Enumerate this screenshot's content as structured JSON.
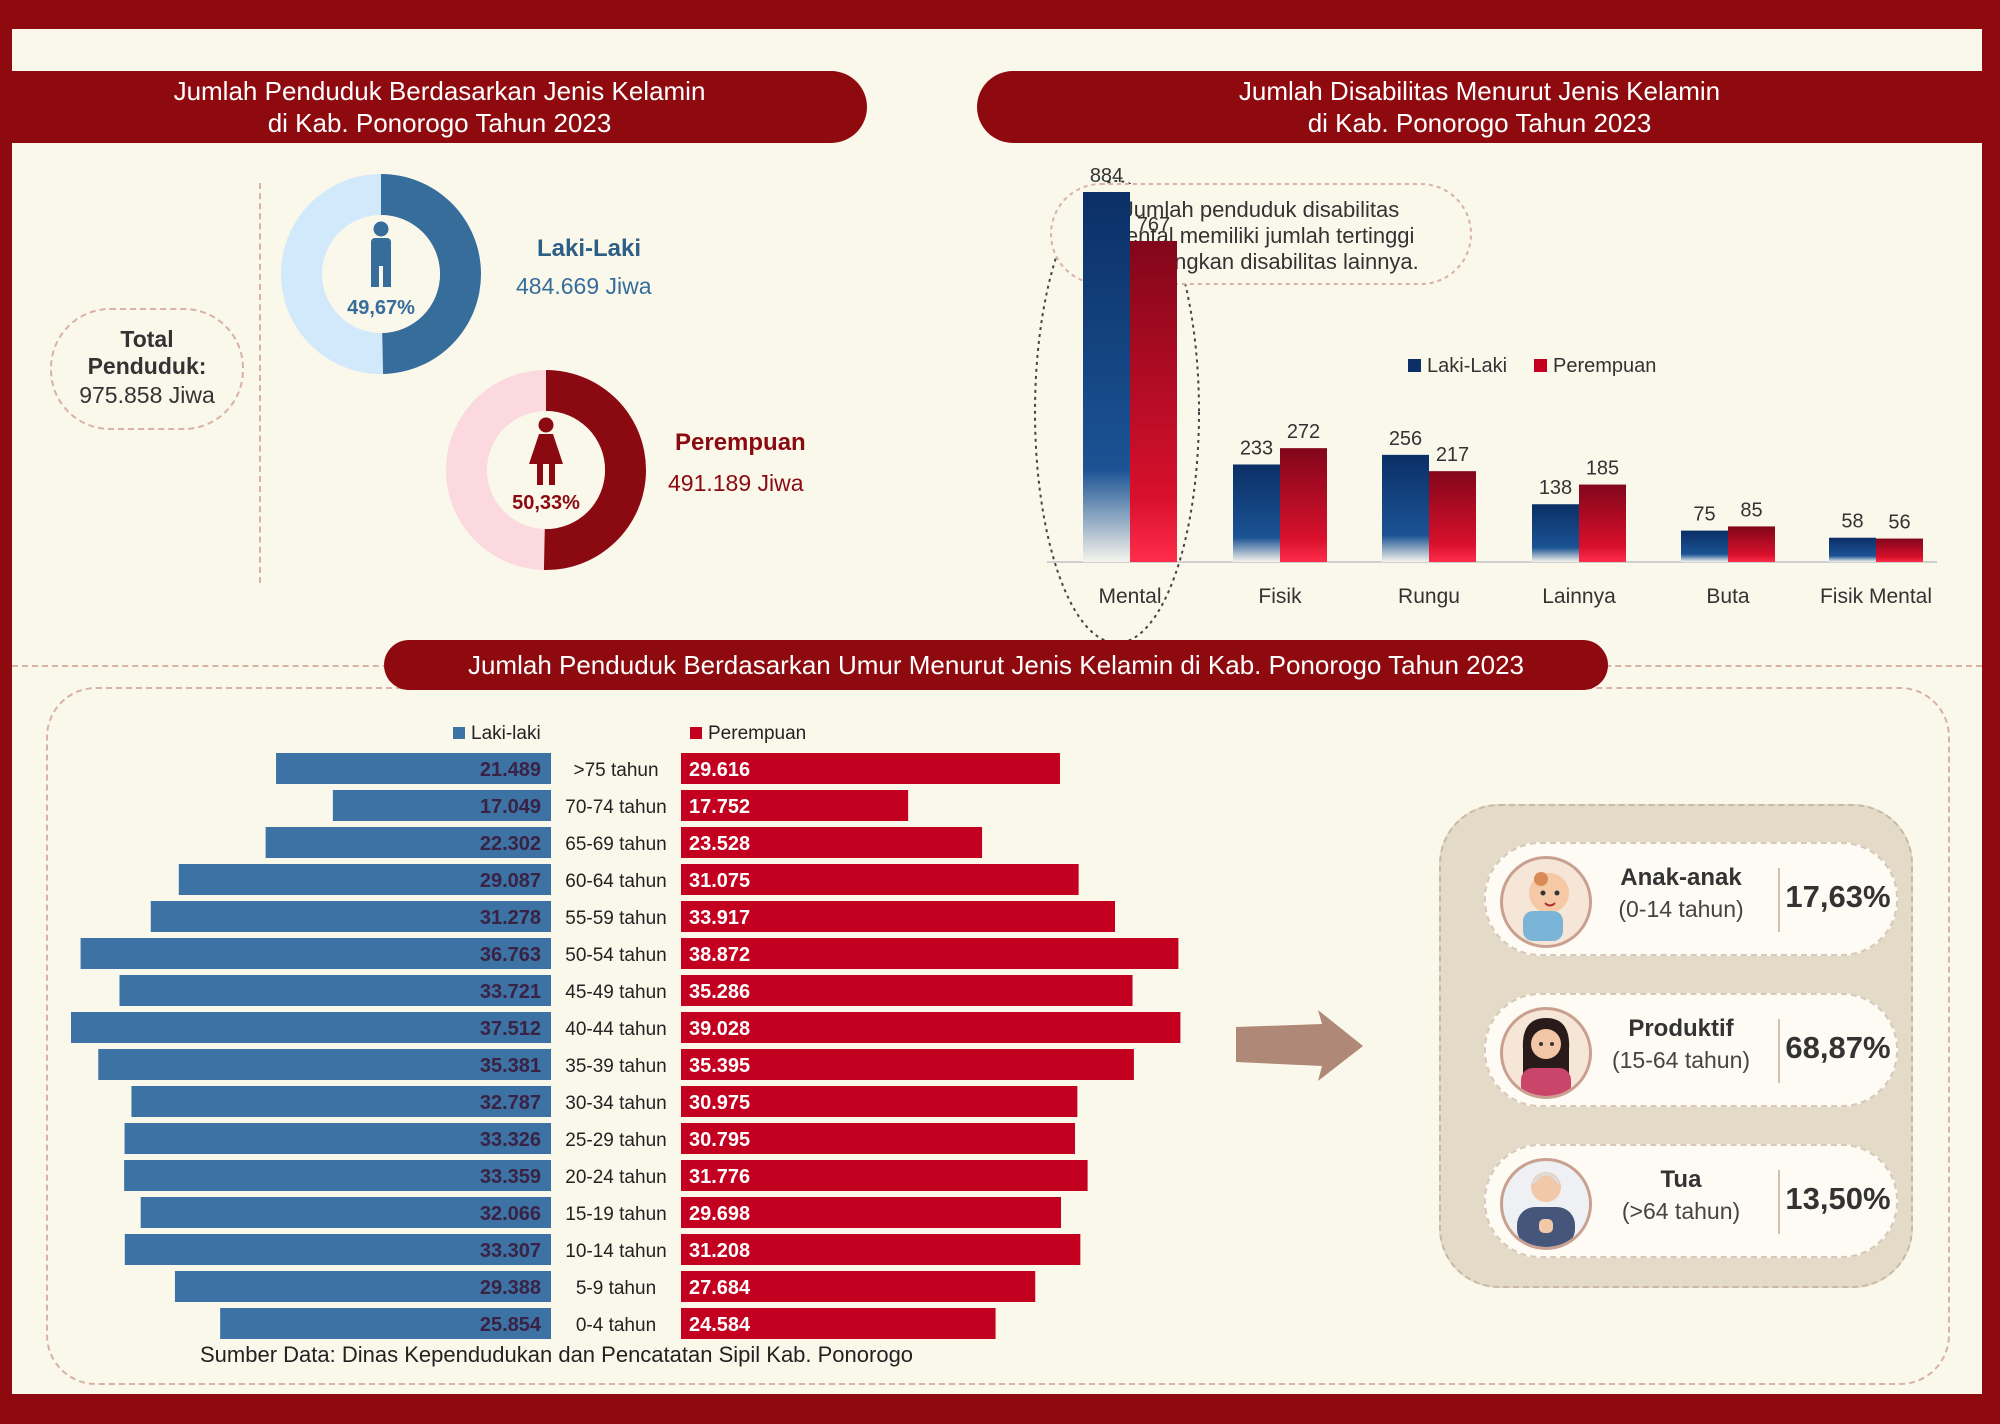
{
  "gender_section": {
    "title_line1": "Jumlah Penduduk Berdasarkan Jenis Kelamin",
    "title_line2": "di Kab. Ponorogo Tahun 2023",
    "total_label": "Total Penduduk:",
    "total_value": "975.858 Jiwa",
    "male": {
      "label": "Laki-Laki",
      "value": "484.669 Jiwa",
      "percent_text": "49,67%",
      "percent": 49.67,
      "color": "#376d9b",
      "light_color": "#d2e8fb"
    },
    "female": {
      "label": "Perempuan",
      "value": "491.189 Jiwa",
      "percent_text": "50,33%",
      "percent": 50.33,
      "color": "#8b0a12",
      "light_color": "#fcd8df"
    }
  },
  "disability_section": {
    "title_line1": "Jumlah Disabilitas Menurut Jenis Kelamin",
    "title_line2": "di Kab. Ponorogo Tahun 2023",
    "callout": [
      "Jumlah penduduk disabilitas",
      "mental memiliki jumlah tertinggi",
      "dibandingkan disabilitas lainnya."
    ]
  },
  "age_section": {
    "title": "Jumlah Penduduk Berdasarkan Umur Menurut Jenis Kelamin di Kab. Ponorogo Tahun 2023",
    "source": "Sumber Data: Dinas Kependudukan dan Pencatatan Sipil Kab. Ponorogo"
  },
  "categories": [
    {
      "name": "Anak-anak",
      "range": "(0-14 tahun)",
      "percent": "17,63%",
      "icon": "baby-icon"
    },
    {
      "name": "Produktif",
      "range": "(15-64 tahun)",
      "percent": "68,87%",
      "icon": "woman-icon"
    },
    {
      "name": "Tua",
      "range": "(>64 tahun)",
      "percent": "13,50%",
      "icon": "elder-icon"
    }
  ],
  "colors": {
    "brand": "#8f0a0f",
    "male_bar": "#0b2f66",
    "female_bar": "#9a0a18",
    "pyr_male": "#3c72a4",
    "pyr_female": "#c3001f",
    "arrow": "#b08878"
  },
  "chart_data": [
    {
      "type": "bar",
      "title": "Jumlah Disabilitas Menurut Jenis Kelamin di Kab. Ponorogo Tahun 2023",
      "categories": [
        "Mental",
        "Fisik",
        "Rungu",
        "Lainnya",
        "Buta",
        "Fisik Mental"
      ],
      "series": [
        {
          "name": "Laki-Laki",
          "values": [
            884,
            233,
            256,
            138,
            75,
            58
          ]
        },
        {
          "name": "Perempuan",
          "values": [
            767,
            272,
            217,
            185,
            85,
            56
          ]
        }
      ],
      "ylim": [
        0,
        920
      ],
      "legend": "top-right"
    },
    {
      "type": "bar",
      "orientation": "horizontal-pyramid",
      "title": "Jumlah Penduduk Berdasarkan Umur Menurut Jenis Kelamin di Kab. Ponorogo Tahun 2023",
      "categories": [
        ">75 tahun",
        "70-74 tahun",
        "65-69 tahun",
        "60-64 tahun",
        "55-59 tahun",
        "50-54 tahun",
        "45-49 tahun",
        "40-44 tahun",
        "35-39 tahun",
        "30-34 tahun",
        "25-29 tahun",
        "20-24 tahun",
        "15-19 tahun",
        "10-14 tahun",
        "5-9 tahun",
        "0-4 tahun"
      ],
      "series": [
        {
          "name": "Laki-laki",
          "values": [
            21489,
            17049,
            22302,
            29087,
            31278,
            36763,
            33721,
            37512,
            35381,
            32787,
            33326,
            33359,
            32066,
            33307,
            29388,
            25854
          ],
          "labels": [
            "21.489",
            "17.049",
            "22.302",
            "29.087",
            "31.278",
            "36.763",
            "33.721",
            "37.512",
            "35.381",
            "32.787",
            "33.326",
            "33.359",
            "32.066",
            "33.307",
            "29.388",
            "25.854"
          ]
        },
        {
          "name": "Perempuan",
          "values": [
            29616,
            17752,
            23528,
            31075,
            33917,
            38872,
            35286,
            39028,
            35395,
            30975,
            30795,
            31776,
            29698,
            31208,
            27684,
            24584
          ],
          "labels": [
            "29.616",
            "17.752",
            "23.528",
            "31.075",
            "33.917",
            "38.872",
            "35.286",
            "39.028",
            "35.395",
            "30.975",
            "30.795",
            "31.776",
            "29.698",
            "31.208",
            "27.684",
            "24.584"
          ]
        }
      ],
      "legend": "top"
    }
  ]
}
